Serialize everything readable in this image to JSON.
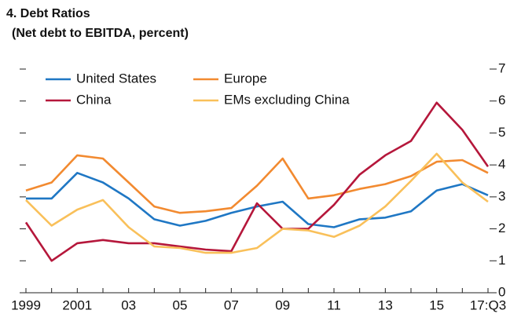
{
  "chart_data": {
    "type": "line",
    "title": "4. Debt Ratios",
    "subtitle": "(Net debt to EBITDA, percent)",
    "categories": [
      "1999",
      null,
      "2001",
      null,
      "03",
      null,
      "05",
      null,
      "07",
      null,
      "09",
      null,
      "11",
      null,
      "13",
      null,
      "15",
      null,
      "17:Q3"
    ],
    "series": [
      {
        "name": "United States",
        "color": "#1f77c4",
        "values": [
          2.95,
          2.95,
          3.75,
          3.45,
          2.95,
          2.3,
          2.1,
          2.25,
          2.5,
          2.7,
          2.85,
          2.15,
          2.05,
          2.3,
          2.35,
          2.55,
          3.2,
          3.4,
          3.05
        ]
      },
      {
        "name": "Europe",
        "color": "#f28a30",
        "values": [
          3.2,
          3.45,
          4.3,
          4.2,
          3.45,
          2.7,
          2.5,
          2.55,
          2.65,
          3.35,
          4.2,
          2.95,
          3.05,
          3.25,
          3.4,
          3.65,
          4.1,
          4.15,
          3.75
        ]
      },
      {
        "name": "China",
        "color": "#b5173b",
        "values": [
          2.2,
          1.0,
          1.55,
          1.65,
          1.55,
          1.55,
          1.45,
          1.35,
          1.3,
          2.8,
          2.0,
          2.0,
          2.75,
          3.7,
          4.3,
          4.75,
          5.95,
          5.1,
          3.95
        ]
      },
      {
        "name": "EMs excluding China",
        "color": "#f9c05a",
        "values": [
          2.9,
          2.1,
          2.6,
          2.9,
          2.05,
          1.45,
          1.4,
          1.25,
          1.25,
          1.4,
          2.0,
          1.95,
          1.75,
          2.1,
          2.7,
          3.5,
          4.35,
          3.45,
          2.85
        ]
      }
    ],
    "ylim": [
      0,
      7
    ],
    "yticks": [
      0,
      1,
      2,
      3,
      4,
      5,
      6,
      7
    ]
  }
}
